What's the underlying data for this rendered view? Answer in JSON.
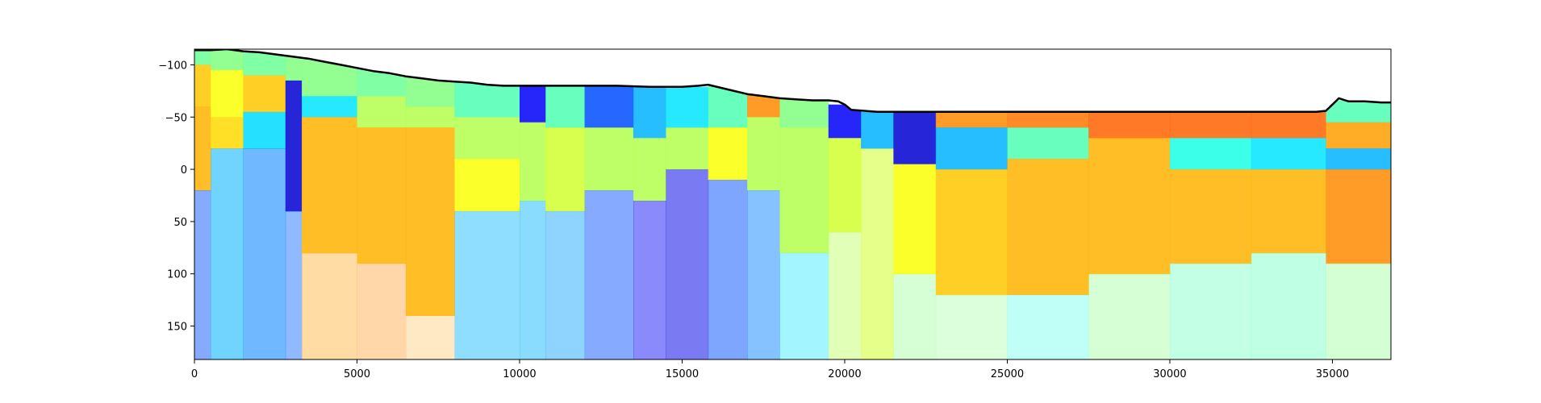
{
  "chart_data": {
    "type": "heatmap",
    "title": "",
    "xlabel": "",
    "ylabel": "",
    "xlim": [
      0,
      36800
    ],
    "ylim": [
      182,
      -115
    ],
    "y_inverted": true,
    "grid": false,
    "legend": "none",
    "colormap": "jet",
    "x_ticks": [
      {
        "value": 0,
        "label": "0"
      },
      {
        "value": 5000,
        "label": "5000"
      },
      {
        "value": 10000,
        "label": "10000"
      },
      {
        "value": 15000,
        "label": "15000"
      },
      {
        "value": 20000,
        "label": "20000"
      },
      {
        "value": 25000,
        "label": "25000"
      },
      {
        "value": 30000,
        "label": "30000"
      },
      {
        "value": 35000,
        "label": "35000"
      }
    ],
    "y_ticks": [
      {
        "value": -100,
        "label": "−100"
      },
      {
        "value": -50,
        "label": "−50"
      },
      {
        "value": 0,
        "label": "0"
      },
      {
        "value": 50,
        "label": "50"
      },
      {
        "value": 100,
        "label": "100"
      },
      {
        "value": 150,
        "label": "150"
      }
    ],
    "surface_line": {
      "color": "#000000",
      "x": [
        0,
        500,
        1000,
        1500,
        2000,
        2500,
        3000,
        3500,
        4000,
        4500,
        5000,
        5500,
        6000,
        6500,
        7000,
        7500,
        8000,
        8500,
        9000,
        9500,
        10000,
        11000,
        12000,
        13000,
        14000,
        15000,
        15500,
        15800,
        16200,
        16600,
        17000,
        17500,
        18000,
        18500,
        19000,
        19500,
        19800,
        20000,
        20200,
        21000,
        25000,
        30000,
        34500,
        34800,
        35000,
        35200,
        35500,
        36000,
        36500,
        36800
      ],
      "y": [
        -114,
        -114,
        -115,
        -113,
        -112,
        -110,
        -108,
        -106,
        -103,
        -100,
        -97,
        -94,
        -92,
        -89,
        -87,
        -85,
        -84,
        -83,
        -81,
        -80,
        -80,
        -80,
        -80,
        -80,
        -79,
        -79,
        -80,
        -81,
        -78,
        -75,
        -72,
        -70,
        -68,
        -67,
        -66,
        -66,
        -65,
        -62,
        -57,
        -55,
        -55,
        -55,
        -55,
        -56,
        -62,
        -68,
        -65,
        -65,
        -64,
        -64
      ]
    },
    "color_field": {
      "value_range": [
        0,
        1
      ],
      "columns": [
        {
          "x0": 0,
          "x1": 500,
          "bands": [
            [
              -115,
              -100,
              0.48
            ],
            [
              -100,
              -60,
              0.68
            ],
            [
              -60,
              20,
              0.7
            ],
            [
              20,
              182,
              0.2
            ]
          ]
        },
        {
          "x0": 500,
          "x1": 1500,
          "bands": [
            [
              -115,
              -95,
              0.5
            ],
            [
              -95,
              -50,
              0.62
            ],
            [
              -50,
              -20,
              0.66
            ],
            [
              -20,
              182,
              0.3
            ]
          ]
        },
        {
          "x0": 1500,
          "x1": 2800,
          "bands": [
            [
              -115,
              -90,
              0.48
            ],
            [
              -90,
              -55,
              0.68
            ],
            [
              -55,
              -20,
              0.34
            ],
            [
              -20,
              182,
              0.25
            ]
          ]
        },
        {
          "x0": 2800,
          "x1": 3300,
          "bands": [
            [
              -110,
              -85,
              0.5
            ],
            [
              -85,
              40,
              0.08
            ],
            [
              40,
              182,
              0.22
            ]
          ]
        },
        {
          "x0": 3300,
          "x1": 5000,
          "bands": [
            [
              -108,
              -70,
              0.5
            ],
            [
              -70,
              -50,
              0.35
            ],
            [
              -50,
              80,
              0.7
            ],
            [
              80,
              182,
              0.72
            ]
          ]
        },
        {
          "x0": 5000,
          "x1": 6500,
          "bands": [
            [
              -97,
              -70,
              0.48
            ],
            [
              -70,
              -40,
              0.55
            ],
            [
              -40,
              90,
              0.7
            ],
            [
              90,
              182,
              0.74
            ]
          ]
        },
        {
          "x0": 6500,
          "x1": 8000,
          "bands": [
            [
              -89,
              -60,
              0.5
            ],
            [
              -60,
              -40,
              0.55
            ],
            [
              -40,
              140,
              0.7
            ],
            [
              140,
              182,
              0.72
            ]
          ]
        },
        {
          "x0": 8000,
          "x1": 10000,
          "bands": [
            [
              -84,
              -50,
              0.45
            ],
            [
              -50,
              -10,
              0.55
            ],
            [
              -10,
              40,
              0.62
            ],
            [
              40,
              182,
              0.3
            ]
          ]
        },
        {
          "x0": 10000,
          "x1": 10800,
          "bands": [
            [
              -80,
              -45,
              0.12
            ],
            [
              -45,
              30,
              0.55
            ],
            [
              30,
              182,
              0.3
            ]
          ]
        },
        {
          "x0": 10800,
          "x1": 12000,
          "bands": [
            [
              -80,
              -40,
              0.45
            ],
            [
              -40,
              40,
              0.58
            ],
            [
              40,
              182,
              0.28
            ]
          ]
        },
        {
          "x0": 12000,
          "x1": 13500,
          "bands": [
            [
              -80,
              -40,
              0.2
            ],
            [
              -40,
              20,
              0.55
            ],
            [
              20,
              182,
              0.2
            ]
          ]
        },
        {
          "x0": 13500,
          "x1": 14500,
          "bands": [
            [
              -79,
              -30,
              0.3
            ],
            [
              -30,
              30,
              0.55
            ],
            [
              30,
              182,
              0.12
            ]
          ]
        },
        {
          "x0": 14500,
          "x1": 15800,
          "bands": [
            [
              -79,
              -40,
              0.35
            ],
            [
              -40,
              0,
              0.55
            ],
            [
              0,
              182,
              0.1
            ]
          ]
        },
        {
          "x0": 15800,
          "x1": 17000,
          "bands": [
            [
              -80,
              -40,
              0.45
            ],
            [
              -40,
              10,
              0.62
            ],
            [
              10,
              182,
              0.2
            ]
          ]
        },
        {
          "x0": 17000,
          "x1": 18000,
          "bands": [
            [
              -72,
              -50,
              0.74
            ],
            [
              -50,
              20,
              0.55
            ],
            [
              20,
              182,
              0.25
            ]
          ]
        },
        {
          "x0": 18000,
          "x1": 19500,
          "bands": [
            [
              -68,
              -40,
              0.5
            ],
            [
              -40,
              80,
              0.55
            ],
            [
              80,
              182,
              0.35
            ]
          ]
        },
        {
          "x0": 19500,
          "x1": 20500,
          "bands": [
            [
              -62,
              -30,
              0.12
            ],
            [
              -30,
              60,
              0.58
            ],
            [
              60,
              182,
              0.55
            ]
          ]
        },
        {
          "x0": 20500,
          "x1": 21500,
          "bands": [
            [
              -55,
              -20,
              0.3
            ],
            [
              -20,
              182,
              0.58
            ]
          ]
        },
        {
          "x0": 21500,
          "x1": 22800,
          "bands": [
            [
              -55,
              -5,
              0.08
            ],
            [
              -5,
              100,
              0.62
            ],
            [
              100,
              182,
              0.5
            ]
          ]
        },
        {
          "x0": 22800,
          "x1": 25000,
          "bands": [
            [
              -55,
              -40,
              0.74
            ],
            [
              -40,
              0,
              0.3
            ],
            [
              0,
              120,
              0.68
            ],
            [
              120,
              182,
              0.5
            ]
          ]
        },
        {
          "x0": 25000,
          "x1": 27500,
          "bands": [
            [
              -55,
              -40,
              0.76
            ],
            [
              -40,
              -10,
              0.45
            ],
            [
              -10,
              120,
              0.7
            ],
            [
              120,
              182,
              0.4
            ]
          ]
        },
        {
          "x0": 27500,
          "x1": 30000,
          "bands": [
            [
              -55,
              -30,
              0.78
            ],
            [
              -30,
              100,
              0.7
            ],
            [
              100,
              182,
              0.5
            ]
          ]
        },
        {
          "x0": 30000,
          "x1": 32500,
          "bands": [
            [
              -55,
              -30,
              0.78
            ],
            [
              -30,
              0,
              0.4
            ],
            [
              0,
              90,
              0.7
            ],
            [
              90,
              182,
              0.45
            ]
          ]
        },
        {
          "x0": 32500,
          "x1": 34800,
          "bands": [
            [
              -55,
              -30,
              0.78
            ],
            [
              -30,
              0,
              0.35
            ],
            [
              0,
              80,
              0.7
            ],
            [
              80,
              182,
              0.45
            ]
          ]
        },
        {
          "x0": 34800,
          "x1": 36800,
          "bands": [
            [
              -66,
              -45,
              0.45
            ],
            [
              -45,
              -20,
              0.72
            ],
            [
              -20,
              0,
              0.3
            ],
            [
              0,
              90,
              0.74
            ],
            [
              90,
              182,
              0.5
            ]
          ]
        }
      ]
    }
  }
}
